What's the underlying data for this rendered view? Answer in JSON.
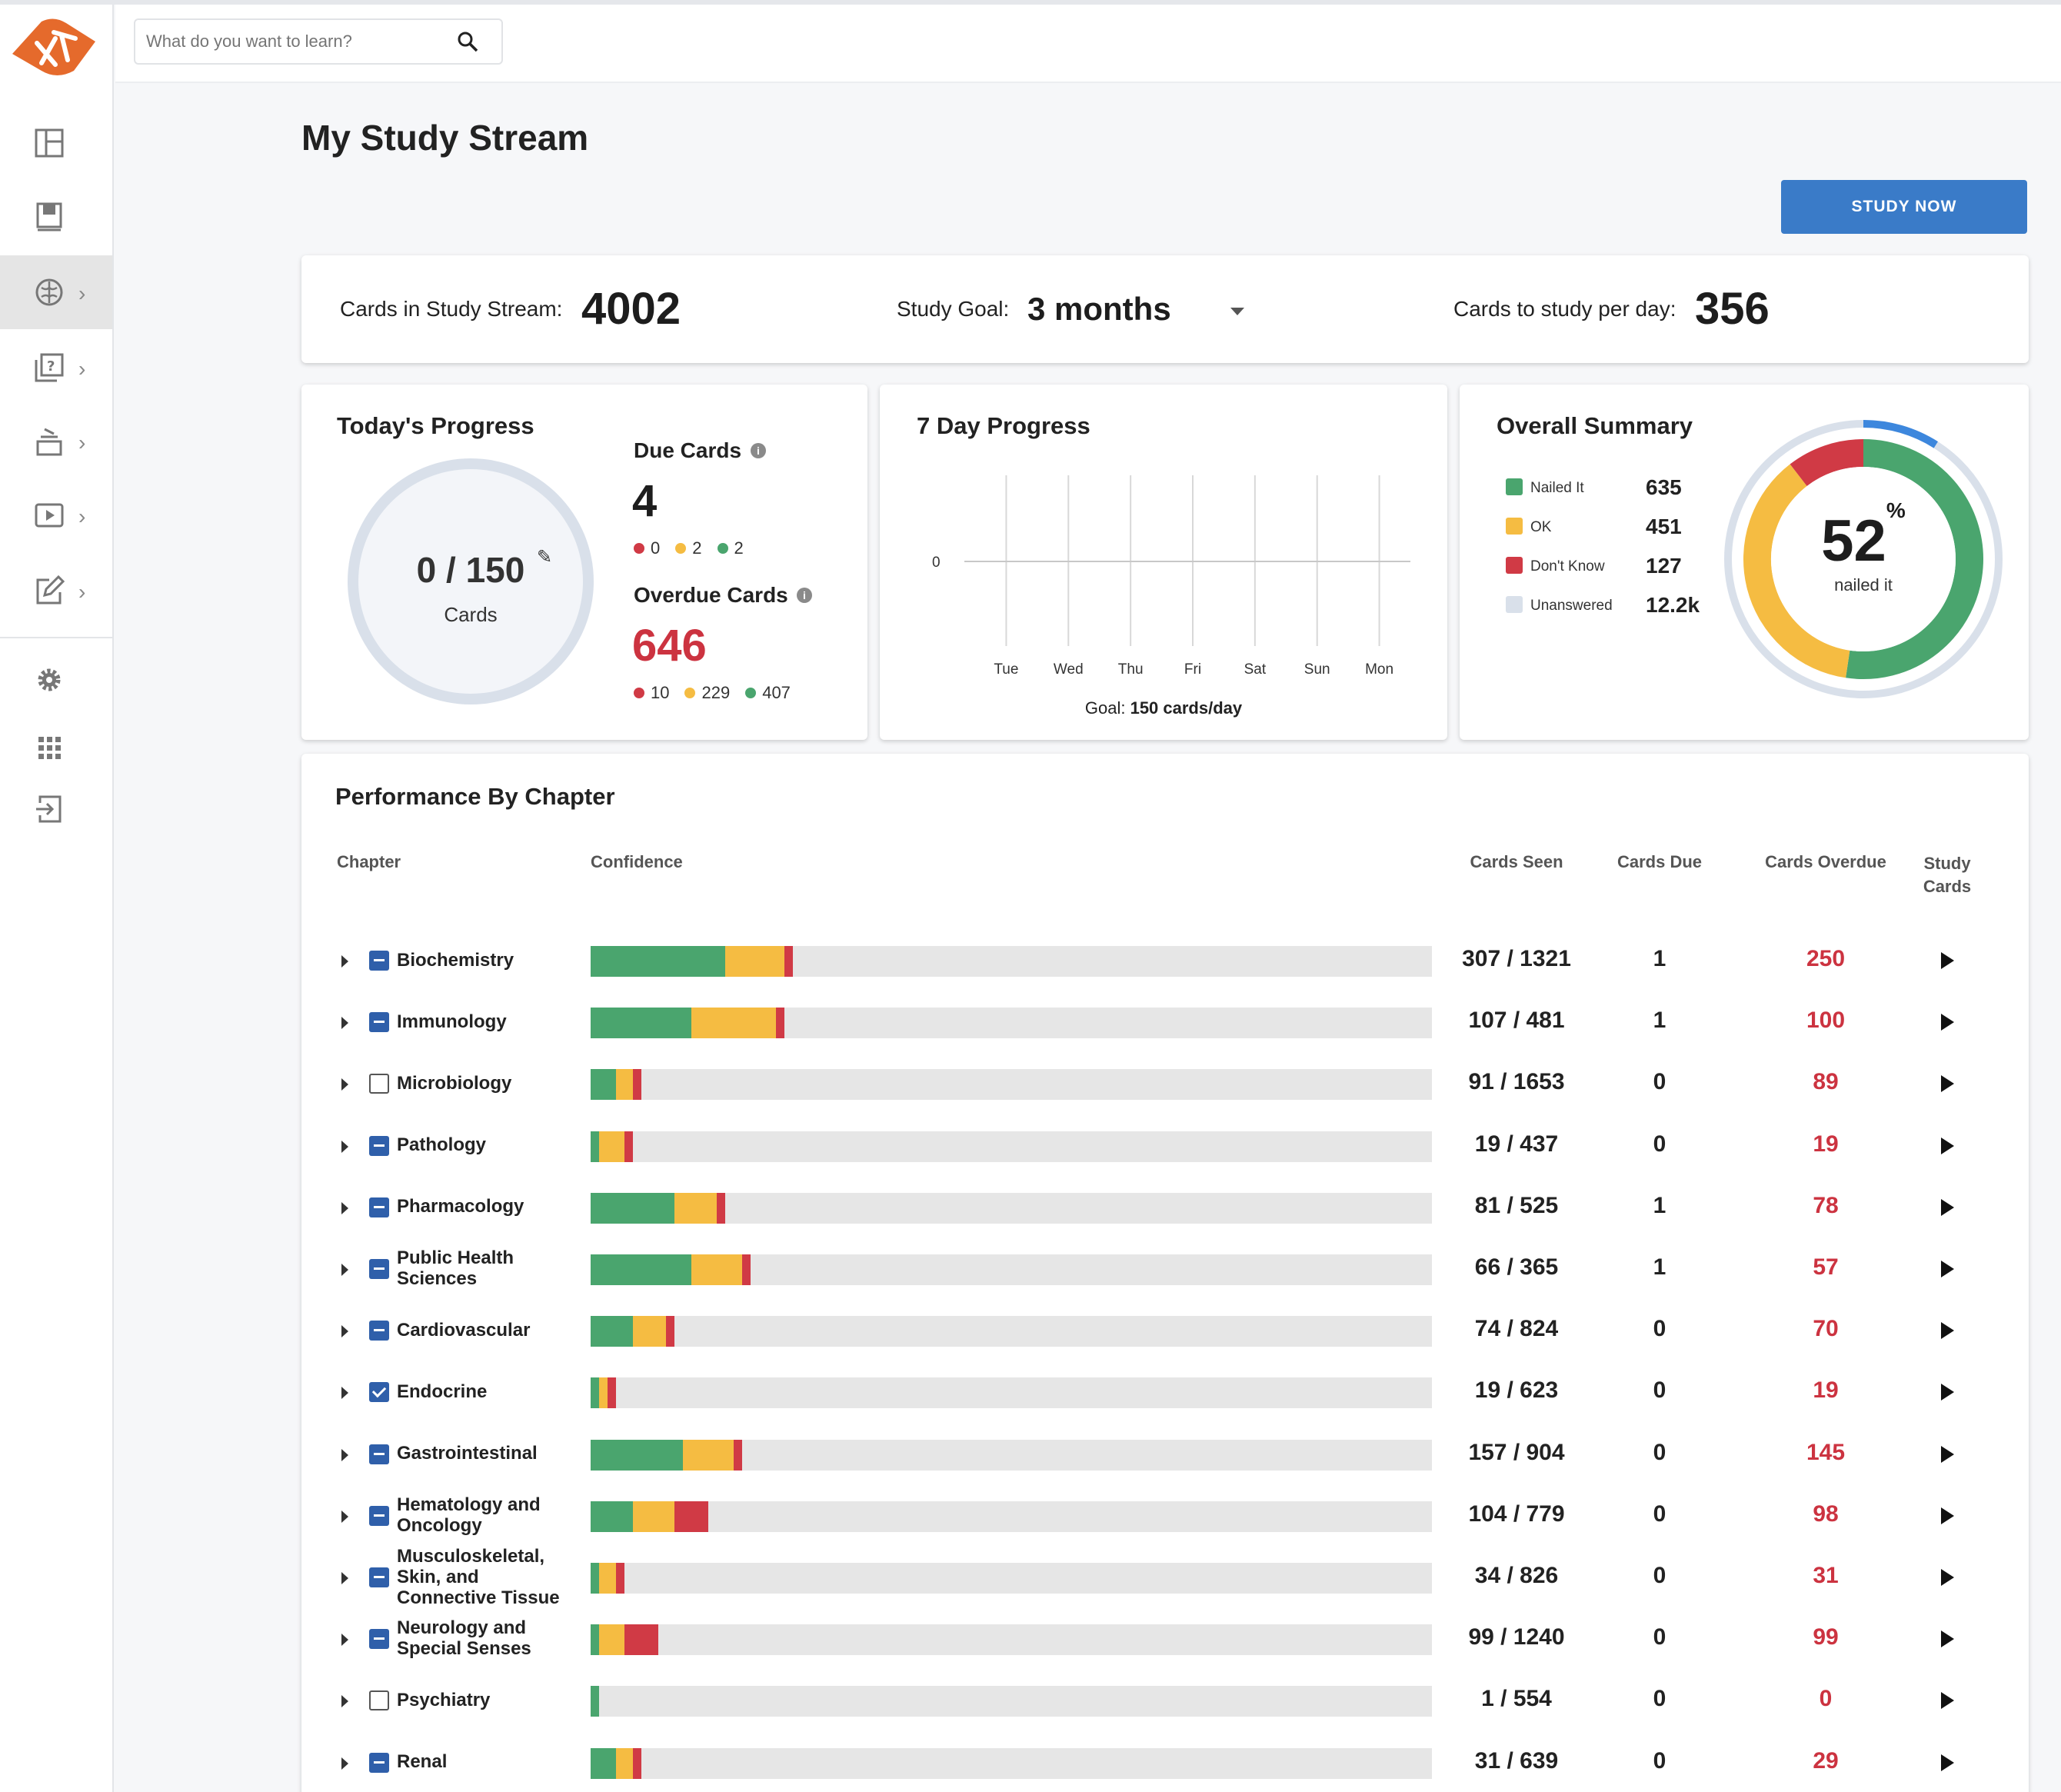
{
  "search": {
    "placeholder": "What do you want to learn?"
  },
  "page": {
    "title": "My Study Stream",
    "study_now_label": "STUDY NOW"
  },
  "stats": {
    "cards_label": "Cards in Study Stream:",
    "cards_value": "4002",
    "goal_label": "Study Goal:",
    "goal_value": "3 months",
    "per_day_label": "Cards to study per day:",
    "per_day_value": "356"
  },
  "today": {
    "title": "Today's Progress",
    "ring_value": "0 / 150",
    "ring_label": "Cards",
    "ring_fraction": 0,
    "due_title": "Due Cards",
    "due_value": "4",
    "due_red": "0",
    "due_yellow": "2",
    "due_green": "2",
    "overdue_title": "Overdue Cards",
    "overdue_value": "646",
    "overdue_red": "10",
    "overdue_yellow": "229",
    "overdue_green": "407"
  },
  "seven_day": {
    "title": "7 Day Progress",
    "y_tick": "0",
    "days": [
      "Tue",
      "Wed",
      "Thu",
      "Fri",
      "Sat",
      "Sun",
      "Mon"
    ],
    "values": [
      0,
      0,
      0,
      0,
      0,
      0,
      0
    ],
    "goal_label": "Goal:",
    "goal_value": "150 cards/day"
  },
  "overall": {
    "title": "Overall Summary",
    "legend": [
      {
        "name": "Nailed It",
        "value": "635",
        "color": "#4aa56e"
      },
      {
        "name": "OK",
        "value": "451",
        "color": "#f5bc42"
      },
      {
        "name": "Don't Know",
        "value": "127",
        "color": "#d03a45"
      },
      {
        "name": "Unanswered",
        "value": "12.2k",
        "color": "#d9e0ea"
      }
    ],
    "percent": "52",
    "percent_sign": "%",
    "percent_label": "nailed it",
    "donut": {
      "nailed": 635,
      "ok": 451,
      "dont_know": 127
    },
    "outer_progress_fraction": 0.09,
    "accent_color": "#3d87dd"
  },
  "performance": {
    "title": "Performance By Chapter",
    "headers": {
      "chapter": "Chapter",
      "confidence": "Confidence",
      "seen": "Cards Seen",
      "due": "Cards Due",
      "overdue": "Cards Overdue",
      "study_1": "Study",
      "study_2": "Cards"
    },
    "colors": {
      "green": "#4aa56e",
      "yellow": "#f5bc42",
      "red": "#d03a45"
    },
    "rows": [
      {
        "name": "Biochemistry",
        "check": "ind",
        "green": 0.16,
        "yellow": 0.07,
        "red": 0.01,
        "seen": "307 / 1321",
        "due": "1",
        "overdue": "250"
      },
      {
        "name": "Immunology",
        "check": "ind",
        "green": 0.12,
        "yellow": 0.1,
        "red": 0.01,
        "seen": "107 / 481",
        "due": "1",
        "overdue": "100"
      },
      {
        "name": "Microbiology",
        "check": "off",
        "green": 0.03,
        "yellow": 0.02,
        "red": 0.01,
        "seen": "91 / 1653",
        "due": "0",
        "overdue": "89"
      },
      {
        "name": "Pathology",
        "check": "ind",
        "green": 0.01,
        "yellow": 0.03,
        "red": 0.01,
        "seen": "19 / 437",
        "due": "0",
        "overdue": "19"
      },
      {
        "name": "Pharmacology",
        "check": "ind",
        "green": 0.1,
        "yellow": 0.05,
        "red": 0.01,
        "seen": "81 / 525",
        "due": "1",
        "overdue": "78"
      },
      {
        "name": "Public Health Sciences",
        "check": "ind",
        "green": 0.12,
        "yellow": 0.06,
        "red": 0.01,
        "seen": "66 / 365",
        "due": "1",
        "overdue": "57"
      },
      {
        "name": "Cardiovascular",
        "check": "ind",
        "green": 0.05,
        "yellow": 0.04,
        "red": 0.01,
        "seen": "74 / 824",
        "due": "0",
        "overdue": "70"
      },
      {
        "name": "Endocrine",
        "check": "on",
        "green": 0.01,
        "yellow": 0.01,
        "red": 0.01,
        "seen": "19 / 623",
        "due": "0",
        "overdue": "19"
      },
      {
        "name": "Gastrointestinal",
        "check": "ind",
        "green": 0.11,
        "yellow": 0.06,
        "red": 0.01,
        "seen": "157 / 904",
        "due": "0",
        "overdue": "145"
      },
      {
        "name": "Hematology and Oncology",
        "check": "ind",
        "green": 0.05,
        "yellow": 0.05,
        "red": 0.04,
        "seen": "104 / 779",
        "due": "0",
        "overdue": "98"
      },
      {
        "name": "Musculoskeletal, Skin, and Connective Tissue",
        "check": "ind",
        "green": 0.01,
        "yellow": 0.02,
        "red": 0.01,
        "seen": "34 / 826",
        "due": "0",
        "overdue": "31"
      },
      {
        "name": "Neurology and Special Senses",
        "check": "ind",
        "green": 0.01,
        "yellow": 0.03,
        "red": 0.04,
        "seen": "99 / 1240",
        "due": "0",
        "overdue": "99"
      },
      {
        "name": "Psychiatry",
        "check": "off",
        "green": 0.01,
        "yellow": 0,
        "red": 0,
        "seen": "1 / 554",
        "due": "0",
        "overdue": "0"
      },
      {
        "name": "Renal",
        "check": "ind",
        "green": 0.03,
        "yellow": 0.02,
        "red": 0.01,
        "seen": "31 / 639",
        "due": "0",
        "overdue": "29"
      }
    ]
  }
}
